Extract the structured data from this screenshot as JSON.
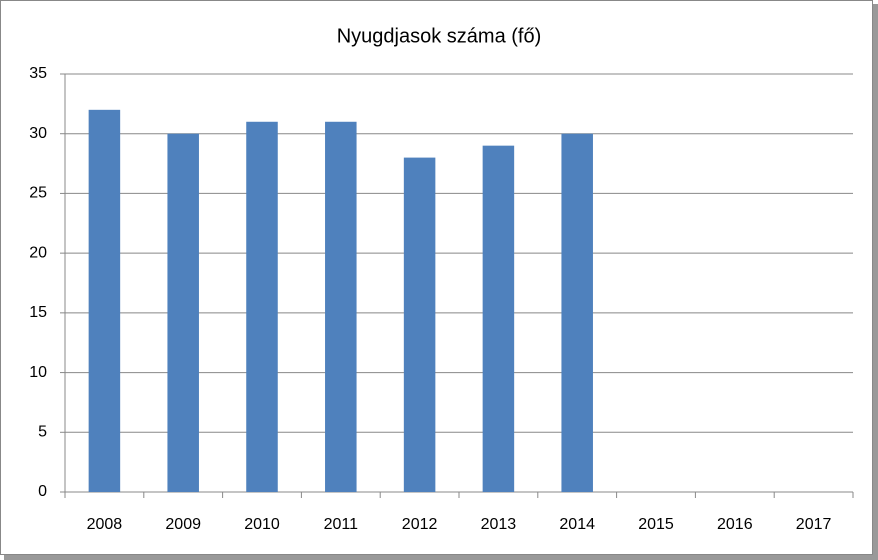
{
  "chart_data": {
    "type": "bar",
    "title": "Nyugdjasok száma (fő)",
    "categories": [
      "2008",
      "2009",
      "2010",
      "2011",
      "2012",
      "2013",
      "2014",
      "2015",
      "2016",
      "2017"
    ],
    "values": [
      32,
      30,
      31,
      31,
      28,
      29,
      30,
      null,
      null,
      null
    ],
    "color": "#4f81bd",
    "ylim": [
      0,
      35
    ],
    "yticks": [
      0,
      5,
      10,
      15,
      20,
      25,
      30,
      35
    ],
    "grid": true
  }
}
